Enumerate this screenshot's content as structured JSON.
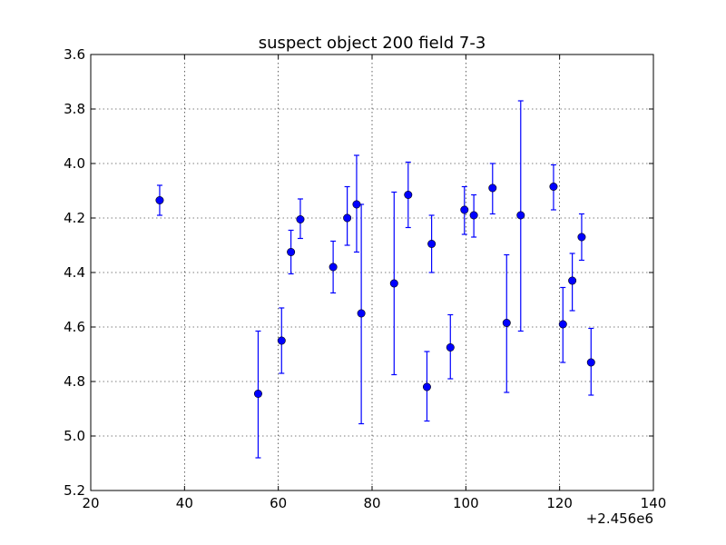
{
  "chart_data": {
    "type": "scatter",
    "title": "suspect object 200 field 7-3",
    "xlabel": "",
    "ylabel": "",
    "x_offset_label": "+2.456e6",
    "xlim": [
      20,
      140
    ],
    "ylim": [
      5.2,
      3.6
    ],
    "y_inverted": true,
    "grid": true,
    "marker_color": "#0000ff",
    "x_ticks": [
      "20",
      "40",
      "60",
      "80",
      "100",
      "120",
      "140"
    ],
    "y_ticks": [
      "3.6",
      "3.8",
      "4.0",
      "4.2",
      "4.4",
      "4.6",
      "4.8",
      "5.0",
      "5.2"
    ],
    "series": [
      {
        "points": [
          {
            "x": 34.7,
            "y": 4.135,
            "err_low": 4.08,
            "err_high": 4.19
          },
          {
            "x": 55.7,
            "y": 4.845,
            "err_low": 4.615,
            "err_high": 5.08
          },
          {
            "x": 60.7,
            "y": 4.65,
            "err_low": 4.53,
            "err_high": 4.77
          },
          {
            "x": 62.7,
            "y": 4.325,
            "err_low": 4.245,
            "err_high": 4.405
          },
          {
            "x": 64.7,
            "y": 4.205,
            "err_low": 4.13,
            "err_high": 4.275
          },
          {
            "x": 71.7,
            "y": 4.38,
            "err_low": 4.285,
            "err_high": 4.475
          },
          {
            "x": 74.7,
            "y": 4.2,
            "err_low": 4.085,
            "err_high": 4.3
          },
          {
            "x": 76.7,
            "y": 4.15,
            "err_low": 3.97,
            "err_high": 4.325
          },
          {
            "x": 77.7,
            "y": 4.55,
            "err_low": 4.15,
            "err_high": 4.955
          },
          {
            "x": 84.7,
            "y": 4.44,
            "err_low": 4.105,
            "err_high": 4.775
          },
          {
            "x": 87.7,
            "y": 4.115,
            "err_low": 3.995,
            "err_high": 4.235
          },
          {
            "x": 91.7,
            "y": 4.82,
            "err_low": 4.69,
            "err_high": 4.945
          },
          {
            "x": 92.7,
            "y": 4.295,
            "err_low": 4.19,
            "err_high": 4.4
          },
          {
            "x": 96.7,
            "y": 4.675,
            "err_low": 4.555,
            "err_high": 4.79
          },
          {
            "x": 99.7,
            "y": 4.17,
            "err_low": 4.085,
            "err_high": 4.26
          },
          {
            "x": 101.7,
            "y": 4.19,
            "err_low": 4.115,
            "err_high": 4.27
          },
          {
            "x": 105.7,
            "y": 4.09,
            "err_low": 4.0,
            "err_high": 4.185
          },
          {
            "x": 108.7,
            "y": 4.585,
            "err_low": 4.335,
            "err_high": 4.84
          },
          {
            "x": 111.7,
            "y": 4.19,
            "err_low": 3.77,
            "err_high": 4.615
          },
          {
            "x": 118.7,
            "y": 4.085,
            "err_low": 4.005,
            "err_high": 4.17
          },
          {
            "x": 120.7,
            "y": 4.59,
            "err_low": 4.455,
            "err_high": 4.73
          },
          {
            "x": 122.7,
            "y": 4.43,
            "err_low": 4.33,
            "err_high": 4.54
          },
          {
            "x": 124.7,
            "y": 4.27,
            "err_low": 4.185,
            "err_high": 4.355
          },
          {
            "x": 126.7,
            "y": 4.73,
            "err_low": 4.605,
            "err_high": 4.85
          }
        ]
      }
    ]
  }
}
